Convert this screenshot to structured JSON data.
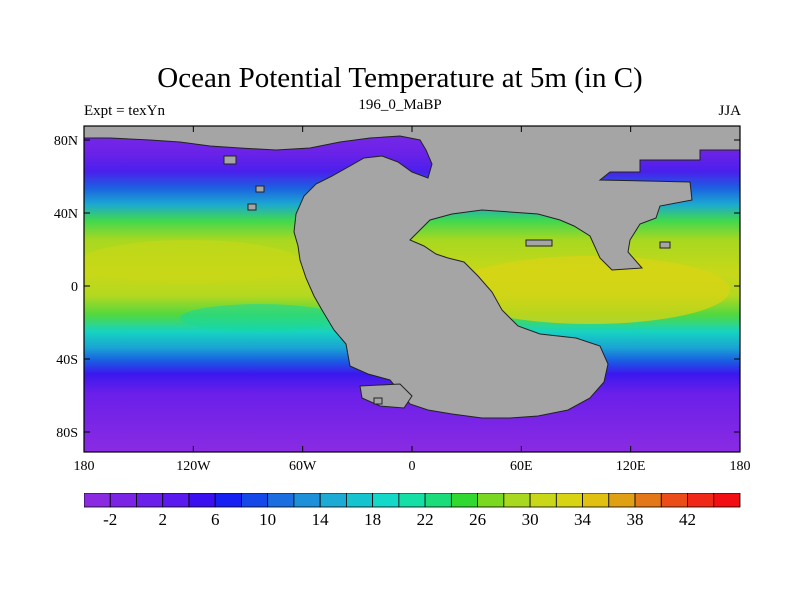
{
  "title": "Ocean Potential Temperature at 5m (in C)",
  "subtitle_left": "Expt = texYn",
  "subtitle_center": "196_0_MaBP",
  "subtitle_right": "JJA",
  "axes": {
    "x_ticks": [
      "180",
      "120W",
      "60W",
      "0",
      "60E",
      "120E",
      "180"
    ],
    "y_ticks": [
      "80N",
      "40N",
      "0",
      "40S",
      "80S"
    ]
  },
  "colors": {
    "land": "#a5a5a5",
    "coast": "#222222"
  },
  "colorbar": {
    "labels": [
      "-2",
      "2",
      "6",
      "10",
      "14",
      "18",
      "22",
      "26",
      "30",
      "34",
      "38",
      "42"
    ],
    "colors": [
      "#8a2be2",
      "#7b24e6",
      "#6a1fea",
      "#5a19ee",
      "#3a10f0",
      "#1620f2",
      "#1448e8",
      "#1a6ee0",
      "#1c90d8",
      "#1cabd4",
      "#16c4d0",
      "#14d8c8",
      "#14e0a6",
      "#1adc7a",
      "#30d830",
      "#7ad820",
      "#a8d820",
      "#c8d818",
      "#d8d414",
      "#e0c010",
      "#e0a014",
      "#e47818",
      "#ec4c18",
      "#f02818",
      "#f20e12"
    ]
  }
}
